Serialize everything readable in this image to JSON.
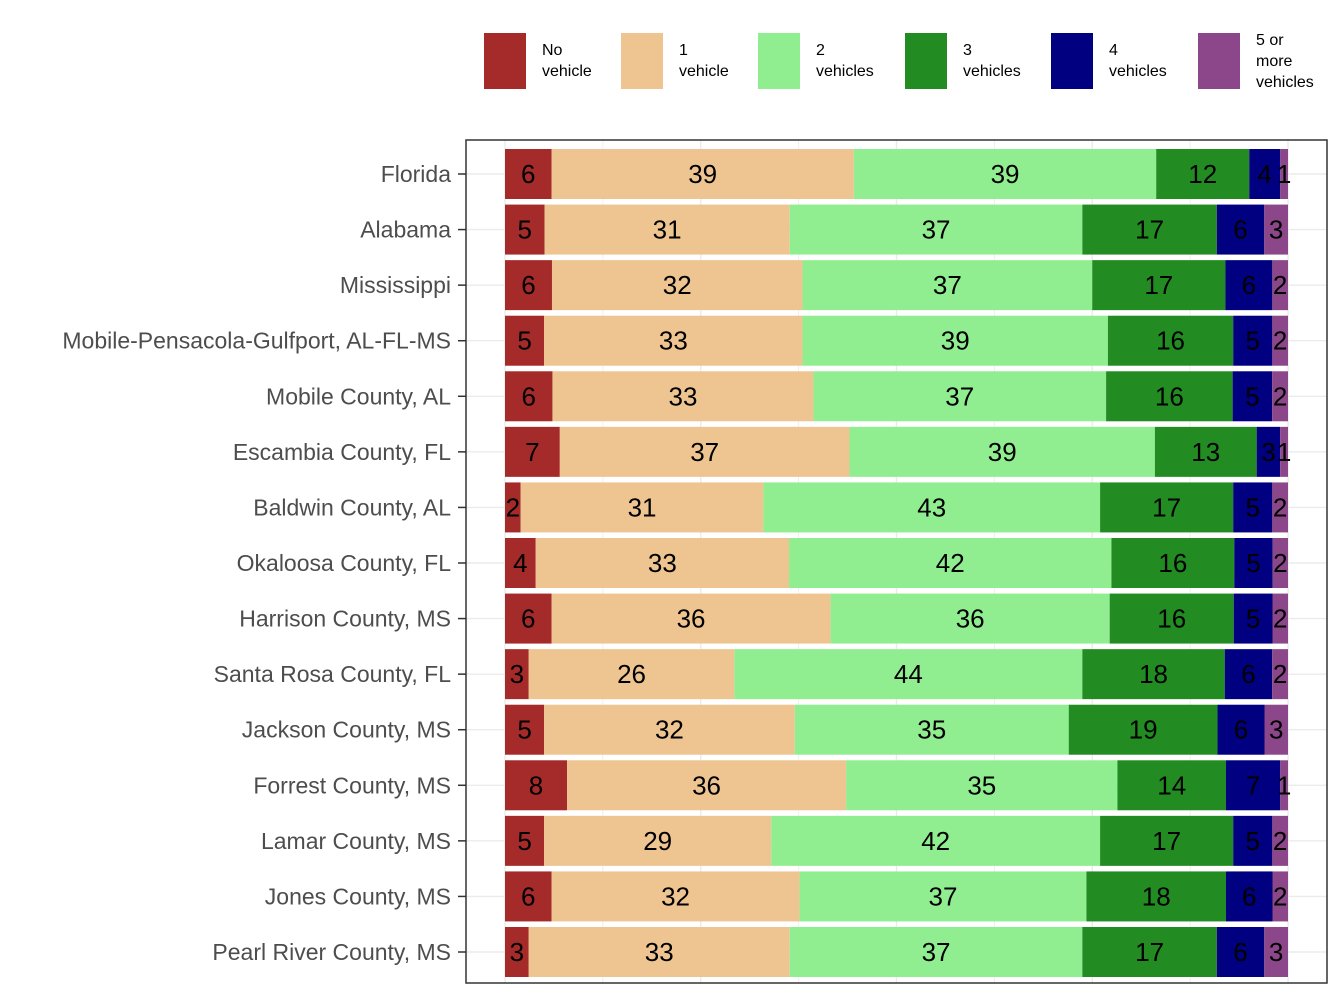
{
  "chart_data": {
    "type": "bar",
    "orientation": "horizontal",
    "stacked": true,
    "title": "",
    "xlabel": "",
    "ylabel": "",
    "xlim": [
      0,
      100
    ],
    "grid": true,
    "legend_position": "top",
    "categories": [
      "Florida",
      "Alabama",
      "Mississippi",
      "Mobile-Pensacola-Gulfport, AL-FL-MS",
      "Mobile County, AL",
      "Escambia County, FL",
      "Baldwin County, AL",
      "Okaloosa County, FL",
      "Harrison County, MS",
      "Santa Rosa County, FL",
      "Jackson County, MS",
      "Forrest County, MS",
      "Lamar County, MS",
      "Jones County, MS",
      "Pearl River County, MS"
    ],
    "series": [
      {
        "name": "No vehicle",
        "legend_lines": [
          "No",
          "vehicle"
        ],
        "color": "#A52A2A",
        "values": [
          6,
          5,
          6,
          5,
          6,
          7,
          2,
          4,
          6,
          3,
          5,
          8,
          5,
          6,
          3
        ]
      },
      {
        "name": "1 vehicle",
        "legend_lines": [
          "1",
          "vehicle"
        ],
        "color": "#EEC591",
        "values": [
          39,
          31,
          32,
          33,
          33,
          37,
          31,
          33,
          36,
          26,
          32,
          36,
          29,
          32,
          33
        ]
      },
      {
        "name": "2 vehicles",
        "legend_lines": [
          "2",
          "vehicles"
        ],
        "color": "#90EE90",
        "values": [
          39,
          37,
          37,
          39,
          37,
          39,
          43,
          42,
          36,
          44,
          35,
          35,
          42,
          37,
          37
        ]
      },
      {
        "name": "3 vehicles",
        "legend_lines": [
          "3",
          "vehicles"
        ],
        "color": "#228B22",
        "values": [
          12,
          17,
          17,
          16,
          16,
          13,
          17,
          16,
          16,
          18,
          19,
          14,
          17,
          18,
          17
        ]
      },
      {
        "name": "4 vehicles",
        "legend_lines": [
          "4",
          "vehicles"
        ],
        "color": "#000080",
        "values": [
          4,
          6,
          6,
          5,
          5,
          3,
          5,
          5,
          5,
          6,
          6,
          7,
          5,
          6,
          6
        ]
      },
      {
        "name": "5 or more vehicles",
        "legend_lines": [
          "5 or",
          "more",
          "vehicles"
        ],
        "color": "#8B4789",
        "values": [
          1,
          3,
          2,
          2,
          2,
          1,
          2,
          2,
          2,
          2,
          3,
          1,
          2,
          2,
          3
        ]
      }
    ]
  }
}
